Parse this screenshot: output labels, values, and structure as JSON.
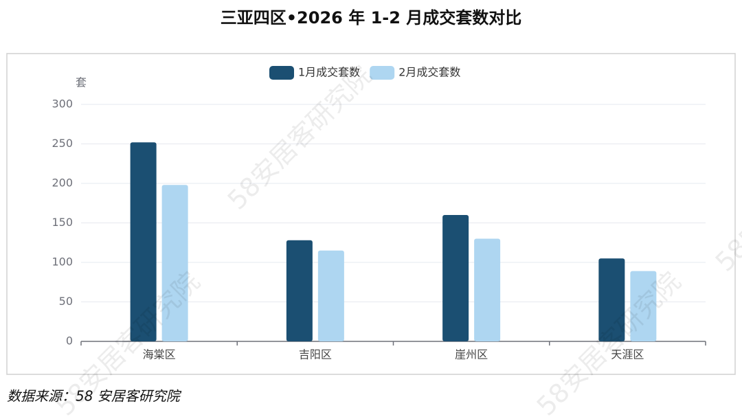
{
  "chart_data": {
    "type": "bar",
    "title": "三亚四区•2026 年 1-2 月成交套数对比",
    "y_label": "套",
    "categories": [
      "海棠区",
      "吉阳区",
      "崖州区",
      "天涯区"
    ],
    "series": [
      {
        "name": "1月成交套数",
        "color": "#1b4f72",
        "values": [
          252,
          128,
          160,
          105
        ]
      },
      {
        "name": "2月成交套数",
        "color": "#aed6f1",
        "values": [
          198,
          115,
          130,
          89
        ]
      }
    ],
    "ylim": [
      0,
      300
    ],
    "yticks": [
      0,
      50,
      100,
      150,
      200,
      250,
      300
    ],
    "grid": true,
    "legend": "top",
    "source": "数据来源：58 安居客研究院",
    "watermark": "58安居客研究院"
  }
}
